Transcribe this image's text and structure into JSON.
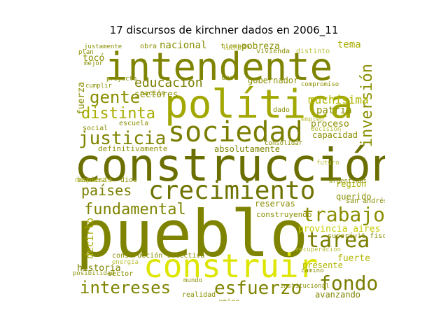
{
  "title": "17 discursos de kirchner dados en 2006_11",
  "colors": {
    "dark_olive": "#6b6f00",
    "olive": "#8a8e00",
    "yellow_green": "#a8ad00",
    "lime": "#d7e000",
    "light": "#b9bf3a"
  },
  "words": {
    "intendente": "intendente",
    "politica": "política",
    "construccion": "construcción",
    "pueblo": "pueblo",
    "crecimiento": "crecimiento",
    "sociedad": "sociedad",
    "construir": "construir",
    "justicia": "justicia",
    "inversion": "inversión",
    "gente": "gente",
    "distinta": "distinta",
    "educacion": "educación",
    "trabajo": "trabajo",
    "tarea": "tarea",
    "fondo": "fondo",
    "fundamental": "fundamental",
    "intereses": "intereses",
    "esfuerzo": "esfuerzo",
    "paises": "países",
    "provincia_aires": "provincia aires",
    "muchisima": "muchísima",
    "nacional": "nacional",
    "pobreza": "pobreza",
    "tema": "tema",
    "patria": "patria",
    "proceso": "proceso",
    "capacidad": "capacidad",
    "absolutamente": "absolutamente",
    "definitivamente": "definitivamente",
    "gobernador": "gobernador",
    "sectores": "sectores",
    "toco": "tocó",
    "fuerza": "fuerza",
    "decirlo": "decirlo",
    "historia": "historia",
    "avanzando": "avanzando",
    "fuerte": "fuerte",
    "presente": "presente",
    "querido": "querido",
    "region": "región",
    "reservas": "reservas",
    "amigo": "amigo",
    "construyendo": "construyendo",
    "bandera": "bandera",
    "dios": "dios",
    "nacion": "nación",
    "escuela": "escuela",
    "social": "social",
    "sector": "sector",
    "respuesta": "respuesta",
    "posibilidad": "posibilidad",
    "construccion_colectiva": "construcción colectiva",
    "san_andres": "san andrés",
    "superavit_fiscal": "superávit fiscal",
    "obra": "obra",
    "tiempos": "tiempos",
    "vivienda": "vivienda",
    "lucha": "lucha",
    "realidad": "realidad",
    "camino": "camino",
    "mundo": "mundo",
    "recuperacion": "recuperación",
    "decision": "decisión",
    "dado": "dado",
    "caso": "caso",
    "distinto": "distinto",
    "empleo": "empleo",
    "energia": "energía",
    "mejor": "mejor",
    "justamente": "justamente",
    "argentinos": "argentinos",
    "cumplir": "cumplir",
    "institucional": "institucional",
    "compromiso": "compromiso",
    "consolidar": "consolidar",
    "plan": "plan",
    "futuro": "futuro",
    "proyecto": "proyecto"
  }
}
